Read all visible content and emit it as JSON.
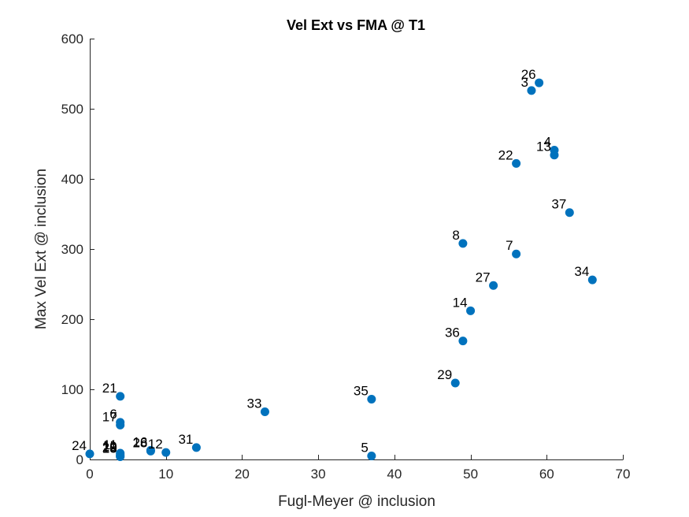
{
  "chart_data": {
    "type": "scatter",
    "title": "Vel Ext vs FMA @ T1",
    "xlabel": "Fugl-Meyer @ inclusion",
    "ylabel": "Max Vel Ext @ inclusion",
    "xlim": [
      0,
      70
    ],
    "ylim": [
      0,
      600
    ],
    "xticks": [
      0,
      10,
      20,
      30,
      40,
      50,
      60,
      70
    ],
    "yticks": [
      0,
      100,
      200,
      300,
      400,
      500,
      600
    ],
    "grid": false,
    "marker_color": "#0072BD",
    "points": [
      {
        "label": "26",
        "x": 59,
        "y": 537
      },
      {
        "label": "3",
        "x": 58,
        "y": 526
      },
      {
        "label": "4",
        "x": 61,
        "y": 441
      },
      {
        "label": "13",
        "x": 61,
        "y": 434
      },
      {
        "label": "22",
        "x": 56,
        "y": 422
      },
      {
        "label": "37",
        "x": 63,
        "y": 352
      },
      {
        "label": "8",
        "x": 49,
        "y": 308
      },
      {
        "label": "7",
        "x": 56,
        "y": 293
      },
      {
        "label": "34",
        "x": 66,
        "y": 256
      },
      {
        "label": "27",
        "x": 53,
        "y": 248
      },
      {
        "label": "14",
        "x": 50,
        "y": 212
      },
      {
        "label": "36",
        "x": 49,
        "y": 169
      },
      {
        "label": "29",
        "x": 48,
        "y": 109
      },
      {
        "label": "35",
        "x": 37,
        "y": 86
      },
      {
        "label": "5",
        "x": 37,
        "y": 5
      },
      {
        "label": "33",
        "x": 23,
        "y": 68
      },
      {
        "label": "21",
        "x": 4,
        "y": 90
      },
      {
        "label": "6",
        "x": 4,
        "y": 53
      },
      {
        "label": "17",
        "x": 4,
        "y": 49
      },
      {
        "label": "31",
        "x": 14,
        "y": 17
      },
      {
        "label": "16",
        "x": 8,
        "y": 13
      },
      {
        "label": "28",
        "x": 8,
        "y": 12
      },
      {
        "label": "12",
        "x": 10,
        "y": 10
      },
      {
        "label": "24",
        "x": 0,
        "y": 8
      },
      {
        "label": "11",
        "x": 4,
        "y": 9
      },
      {
        "label": "19",
        "x": 4,
        "y": 7
      },
      {
        "label": "20",
        "x": 4,
        "y": 5
      },
      {
        "label": "18",
        "x": 4,
        "y": 4
      }
    ]
  }
}
